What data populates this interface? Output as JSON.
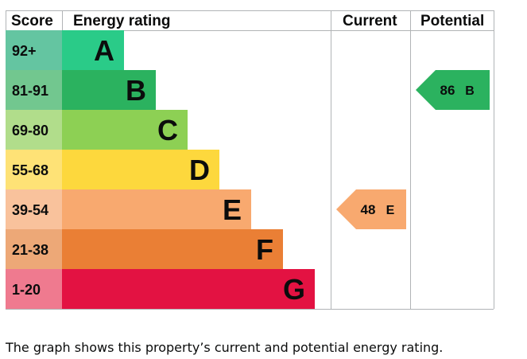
{
  "chart_data": {
    "type": "table",
    "headers": {
      "score": "Score",
      "rating": "Energy rating",
      "current": "Current",
      "potential": "Potential"
    },
    "bands": [
      {
        "letter": "A",
        "range": "92+",
        "color": "#2acb88",
        "score_color": "#64c5a1"
      },
      {
        "letter": "B",
        "range": "81-91",
        "color": "#2bb25f",
        "score_color": "#72c78f"
      },
      {
        "letter": "C",
        "range": "69-80",
        "color": "#8dd054",
        "score_color": "#b1dd8b"
      },
      {
        "letter": "D",
        "range": "55-68",
        "color": "#fdd83d",
        "score_color": "#fee276"
      },
      {
        "letter": "E",
        "range": "39-54",
        "color": "#f8a96f",
        "score_color": "#f9c29c"
      },
      {
        "letter": "F",
        "range": "21-38",
        "color": "#ea7f35",
        "score_color": "#eda877"
      },
      {
        "letter": "G",
        "range": "1-20",
        "color": "#e31242",
        "score_color": "#ef7a8f"
      }
    ],
    "current": {
      "value": 48,
      "letter": "E"
    },
    "potential": {
      "value": 86,
      "letter": "B"
    }
  },
  "caption": "The graph shows this property’s current and potential energy rating."
}
